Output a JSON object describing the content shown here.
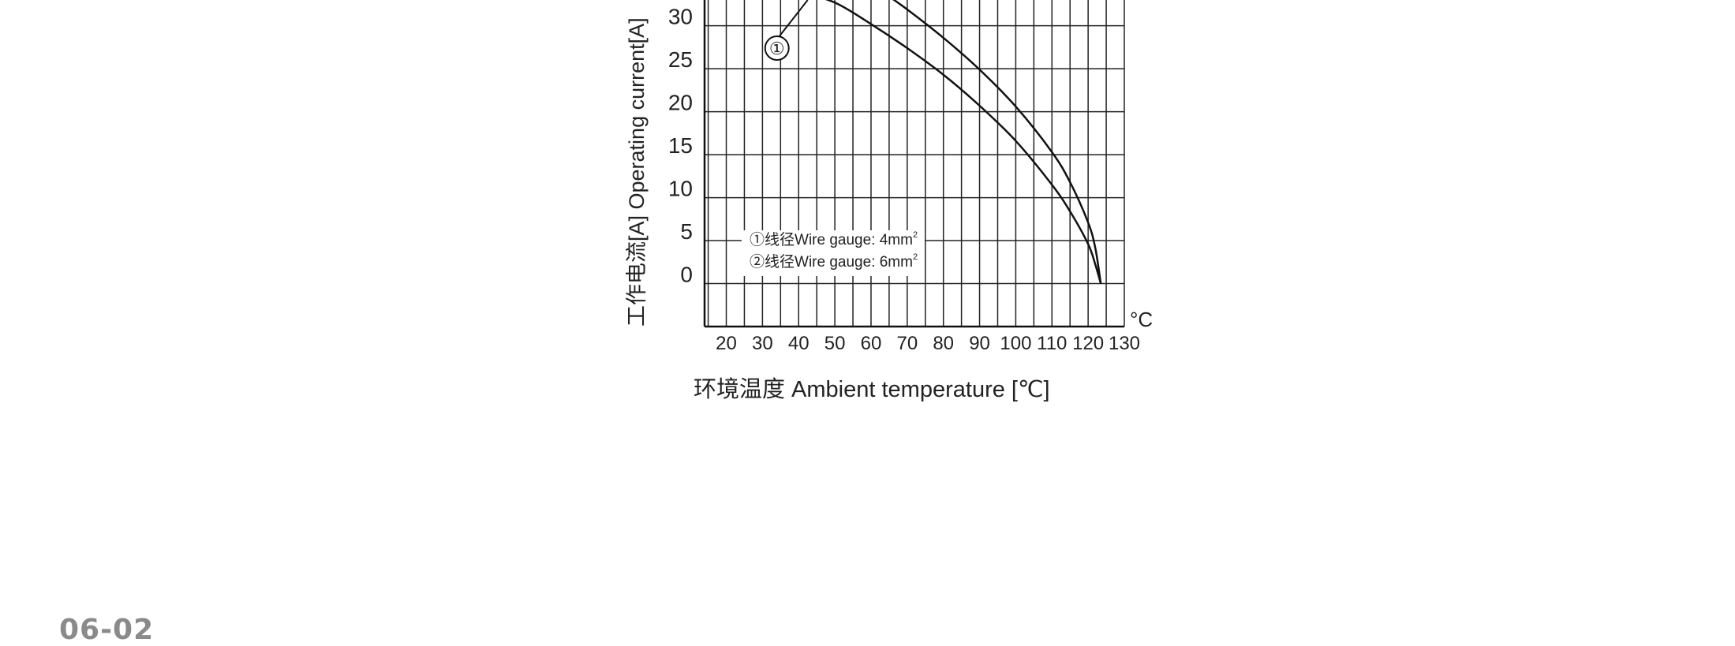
{
  "page": {
    "number": "06-02"
  },
  "chart_data": {
    "type": "line",
    "xlabel": "环境温度 Ambient temperature [℃]",
    "ylabel": "工作电流[A]  Operating current[A]",
    "x_unit": "°C",
    "x_ticks": [
      20,
      30,
      40,
      50,
      60,
      70,
      80,
      90,
      100,
      110,
      120,
      130
    ],
    "y_ticks": [
      0,
      5,
      10,
      15,
      20,
      25,
      30
    ],
    "grid": true,
    "xlim": [
      14,
      130
    ],
    "ylim": [
      -5,
      33
    ],
    "legend": {
      "placement": "bottom-left",
      "entries": [
        {
          "marker": "①",
          "text": "线径Wire gauge: 4mm",
          "sup": "2"
        },
        {
          "marker": "②",
          "text": "线径Wire gauge: 6mm",
          "sup": "2"
        }
      ]
    },
    "series": [
      {
        "marker": "①",
        "x": [
          40,
          50,
          60,
          70,
          80,
          90,
          100,
          110,
          115,
          120,
          122,
          123.5
        ],
        "y": [
          34,
          32.7,
          30.2,
          27.4,
          24.3,
          20.7,
          16.6,
          11.5,
          8.4,
          4.6,
          2.2,
          0
        ]
      },
      {
        "x": [
          63,
          70,
          80,
          90,
          100,
          110,
          115,
          120,
          122,
          123.5
        ],
        "y": [
          34,
          31.9,
          28.6,
          24.9,
          20.6,
          15.3,
          11.8,
          7.1,
          4.1,
          0
        ]
      }
    ],
    "annotations": [
      {
        "text": "①",
        "x": 34,
        "y": 27.4,
        "points_to_series": 0
      }
    ]
  }
}
